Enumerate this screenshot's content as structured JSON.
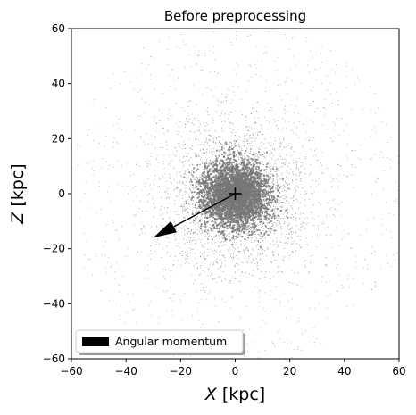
{
  "chart_data": {
    "type": "scatter",
    "title": "Before preprocessing",
    "xlabel_symbol": "X",
    "xlabel_unit": " [kpc]",
    "ylabel_symbol": "Z",
    "ylabel_unit": " [kpc]",
    "xlim": [
      -60,
      60
    ],
    "ylim": [
      -60,
      60
    ],
    "xticks": [
      -60,
      -40,
      -20,
      0,
      20,
      40,
      60
    ],
    "yticks": [
      -60,
      -40,
      -20,
      0,
      20,
      40,
      60
    ],
    "grid": false,
    "legend": {
      "placement": "lower-left",
      "entries": [
        "Angular momentum"
      ]
    },
    "point_color": "#777777",
    "particle_cloud": {
      "center": [
        0,
        0
      ],
      "core_radius": 6,
      "halo_radius": 35
    },
    "center_marker": {
      "x": 0,
      "y": 0,
      "symbol": "+"
    },
    "arrow": {
      "from": [
        0,
        0
      ],
      "to": [
        -30,
        -16
      ],
      "color": "#000000",
      "label": "Angular momentum"
    }
  }
}
